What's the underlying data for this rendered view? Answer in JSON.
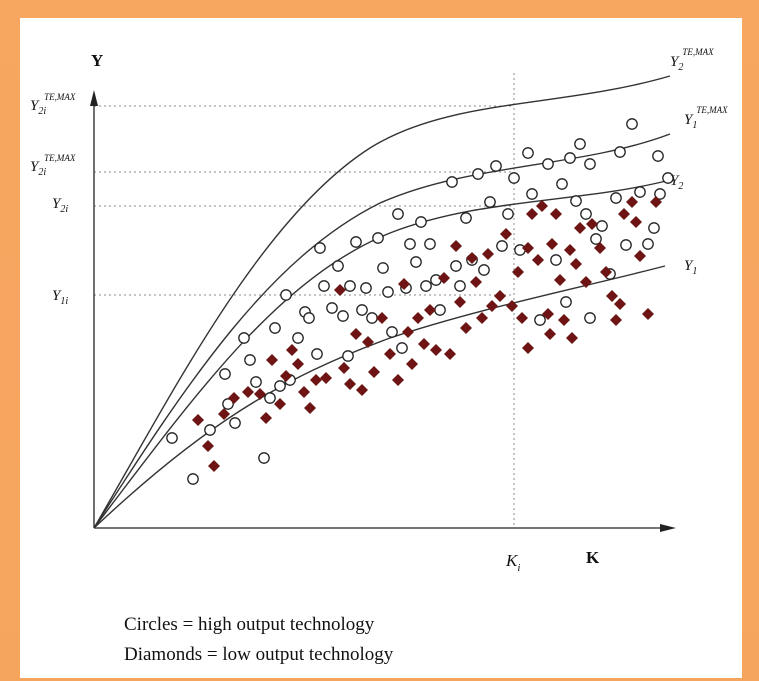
{
  "axes": {
    "y_label": "Y",
    "x_label": "K",
    "k_tick": {
      "main": "K",
      "sub": "i"
    }
  },
  "y_ticks": [
    {
      "main": "Y",
      "sub": "2i",
      "sup": "TE,MAX"
    },
    {
      "main": "Y",
      "sub": "2i",
      "sup": "TE,MAX"
    },
    {
      "main": "Y",
      "sub": "2i",
      "sup": ""
    },
    {
      "main": "Y",
      "sub": "1i",
      "sup": ""
    }
  ],
  "curve_labels": [
    {
      "main": "Y",
      "sub": "2",
      "sup": "TE,MAX"
    },
    {
      "main": "Y",
      "sub": "1",
      "sup": "TE,MAX"
    },
    {
      "main": "Y",
      "sub": "2",
      "sup": ""
    },
    {
      "main": "Y",
      "sub": "1",
      "sup": ""
    }
  ],
  "legend": {
    "circles": "Circles = high output technology",
    "diamonds": "Diamonds = low output technology"
  },
  "colors": {
    "curve": "#333333",
    "circle_stroke": "#222222",
    "diamond_fill": "#6e1414",
    "guide": "#888888",
    "background_frame": "#f7a75f"
  }
}
